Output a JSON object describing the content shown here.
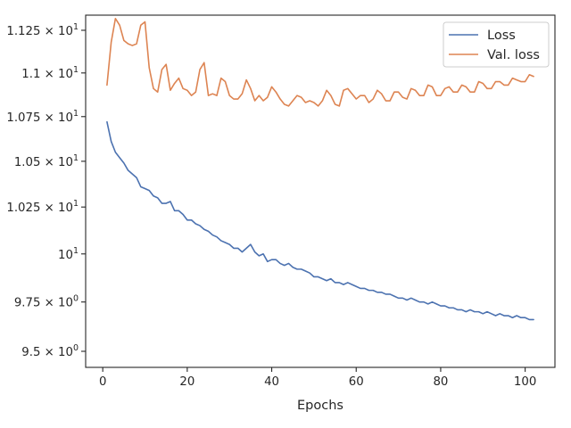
{
  "chart_data": {
    "type": "line",
    "title": "",
    "xlabel": "Epochs",
    "ylabel": "",
    "yscale": "log",
    "xlim": [
      -4.05,
      107.05
    ],
    "ylim": [
      9.42,
      11.34
    ],
    "grid": false,
    "legend": {
      "placement": "top-right"
    },
    "xticks": [
      {
        "value": 0,
        "label": "0"
      },
      {
        "value": 20,
        "label": "20"
      },
      {
        "value": 40,
        "label": "40"
      },
      {
        "value": 60,
        "label": "60"
      },
      {
        "value": 80,
        "label": "80"
      },
      {
        "value": 100,
        "label": "100"
      }
    ],
    "yticks": [
      {
        "value": 9.5,
        "mantissa": "9.5",
        "times": " × ",
        "base": "10",
        "exponent": "0"
      },
      {
        "value": 9.75,
        "mantissa": "9.75",
        "times": " × ",
        "base": "10",
        "exponent": "0"
      },
      {
        "value": 10.0,
        "mantissa": "",
        "times": "",
        "base": "10",
        "exponent": "1"
      },
      {
        "value": 10.25,
        "mantissa": "1.025",
        "times": " × ",
        "base": "10",
        "exponent": "1"
      },
      {
        "value": 10.5,
        "mantissa": "1.05",
        "times": " × ",
        "base": "10",
        "exponent": "1"
      },
      {
        "value": 10.75,
        "mantissa": "1.075",
        "times": " × ",
        "base": "10",
        "exponent": "1"
      },
      {
        "value": 11.0,
        "mantissa": "1.1",
        "times": " × ",
        "base": "10",
        "exponent": "1"
      },
      {
        "value": 11.25,
        "mantissa": "1.125",
        "times": " × ",
        "base": "10",
        "exponent": "1"
      }
    ],
    "x_start": 1,
    "x_step": 1,
    "series": [
      {
        "name": "Loss",
        "color": "#4c72b0",
        "values": [
          10.72,
          10.61,
          10.55,
          10.52,
          10.49,
          10.45,
          10.43,
          10.41,
          10.36,
          10.35,
          10.34,
          10.31,
          10.3,
          10.27,
          10.27,
          10.28,
          10.23,
          10.23,
          10.21,
          10.18,
          10.18,
          10.16,
          10.15,
          10.13,
          10.12,
          10.1,
          10.09,
          10.07,
          10.06,
          10.05,
          10.03,
          10.03,
          10.01,
          10.03,
          10.05,
          10.01,
          9.99,
          10.0,
          9.96,
          9.97,
          9.97,
          9.95,
          9.94,
          9.95,
          9.93,
          9.92,
          9.92,
          9.91,
          9.9,
          9.88,
          9.88,
          9.87,
          9.86,
          9.87,
          9.85,
          9.85,
          9.84,
          9.85,
          9.84,
          9.83,
          9.82,
          9.82,
          9.81,
          9.81,
          9.8,
          9.8,
          9.79,
          9.79,
          9.78,
          9.77,
          9.77,
          9.76,
          9.77,
          9.76,
          9.75,
          9.75,
          9.74,
          9.75,
          9.74,
          9.73,
          9.73,
          9.72,
          9.72,
          9.71,
          9.71,
          9.7,
          9.71,
          9.7,
          9.7,
          9.69,
          9.7,
          9.69,
          9.68,
          9.69,
          9.68,
          9.68,
          9.67,
          9.68,
          9.67,
          9.67,
          9.66,
          9.66
        ]
      },
      {
        "name": "Val. loss",
        "color": "#dd8452",
        "values": [
          10.93,
          11.18,
          11.32,
          11.28,
          11.19,
          11.17,
          11.16,
          11.17,
          11.28,
          11.3,
          11.03,
          10.91,
          10.89,
          11.02,
          11.05,
          10.9,
          10.94,
          10.97,
          10.91,
          10.9,
          10.87,
          10.89,
          11.02,
          11.06,
          10.87,
          10.88,
          10.87,
          10.97,
          10.95,
          10.87,
          10.85,
          10.85,
          10.88,
          10.96,
          10.91,
          10.84,
          10.87,
          10.84,
          10.86,
          10.92,
          10.89,
          10.85,
          10.82,
          10.81,
          10.84,
          10.87,
          10.86,
          10.83,
          10.84,
          10.83,
          10.81,
          10.84,
          10.9,
          10.87,
          10.82,
          10.81,
          10.9,
          10.91,
          10.88,
          10.85,
          10.87,
          10.87,
          10.83,
          10.85,
          10.9,
          10.88,
          10.84,
          10.84,
          10.89,
          10.89,
          10.86,
          10.85,
          10.91,
          10.9,
          10.87,
          10.87,
          10.93,
          10.92,
          10.87,
          10.87,
          10.91,
          10.92,
          10.89,
          10.89,
          10.93,
          10.92,
          10.89,
          10.89,
          10.95,
          10.94,
          10.91,
          10.91,
          10.95,
          10.95,
          10.93,
          10.93,
          10.97,
          10.96,
          10.95,
          10.95,
          10.99,
          10.98
        ]
      }
    ]
  }
}
